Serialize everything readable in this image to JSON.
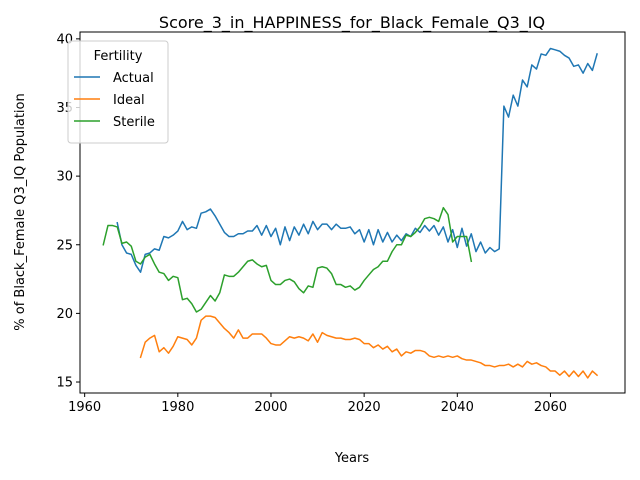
{
  "chart_data": {
    "type": "line",
    "title": "Score_3_in_HAPPINESS_for_Black_Female_Q3_IQ",
    "xlabel": "Years",
    "ylabel": "% of Black_Female Q3_IQ Population",
    "xlim": [
      1959,
      2076
    ],
    "ylim": [
      14.2,
      40.5
    ],
    "xticks": [
      1960,
      1980,
      2000,
      2020,
      2040,
      2060
    ],
    "yticks": [
      15,
      20,
      25,
      30,
      35,
      40
    ],
    "grid": false,
    "legend": {
      "title": "Fertility",
      "placement": "top-left"
    },
    "series": [
      {
        "name": "Actual",
        "color": "#1f77b4",
        "points": [
          [
            1967,
            26.6
          ],
          [
            1968,
            25.0
          ],
          [
            1969,
            24.4
          ],
          [
            1970,
            24.3
          ],
          [
            1971,
            23.5
          ],
          [
            1972,
            23.0
          ],
          [
            1973,
            24.3
          ],
          [
            1974,
            24.4
          ],
          [
            1975,
            24.7
          ],
          [
            1976,
            24.6
          ],
          [
            1977,
            25.6
          ],
          [
            1978,
            25.5
          ],
          [
            1979,
            25.7
          ],
          [
            1980,
            26.0
          ],
          [
            1981,
            26.7
          ],
          [
            1982,
            26.1
          ],
          [
            1983,
            26.3
          ],
          [
            1984,
            26.2
          ],
          [
            1985,
            27.3
          ],
          [
            1986,
            27.4
          ],
          [
            1987,
            27.6
          ],
          [
            1988,
            27.1
          ],
          [
            1989,
            26.5
          ],
          [
            1990,
            25.9
          ],
          [
            1991,
            25.6
          ],
          [
            1992,
            25.6
          ],
          [
            1993,
            25.8
          ],
          [
            1994,
            25.8
          ],
          [
            1995,
            26.0
          ],
          [
            1996,
            26.0
          ],
          [
            1997,
            26.4
          ],
          [
            1998,
            25.7
          ],
          [
            1999,
            26.4
          ],
          [
            2000,
            25.6
          ],
          [
            2001,
            26.2
          ],
          [
            2002,
            25.0
          ],
          [
            2003,
            26.3
          ],
          [
            2004,
            25.3
          ],
          [
            2005,
            26.3
          ],
          [
            2006,
            25.7
          ],
          [
            2007,
            26.5
          ],
          [
            2008,
            25.8
          ],
          [
            2009,
            26.7
          ],
          [
            2010,
            26.1
          ],
          [
            2011,
            26.5
          ],
          [
            2012,
            26.5
          ],
          [
            2013,
            26.1
          ],
          [
            2014,
            26.5
          ],
          [
            2015,
            26.2
          ],
          [
            2016,
            26.2
          ],
          [
            2017,
            26.3
          ],
          [
            2018,
            25.8
          ],
          [
            2019,
            26.1
          ],
          [
            2020,
            25.2
          ],
          [
            2021,
            26.1
          ],
          [
            2022,
            25.0
          ],
          [
            2023,
            26.1
          ],
          [
            2024,
            25.2
          ],
          [
            2025,
            25.9
          ],
          [
            2026,
            25.2
          ],
          [
            2027,
            25.7
          ],
          [
            2028,
            25.3
          ],
          [
            2029,
            25.8
          ],
          [
            2030,
            25.6
          ],
          [
            2031,
            26.2
          ],
          [
            2032,
            25.9
          ],
          [
            2033,
            26.4
          ],
          [
            2034,
            26.0
          ],
          [
            2035,
            26.4
          ],
          [
            2036,
            25.7
          ],
          [
            2037,
            26.3
          ],
          [
            2038,
            25.2
          ],
          [
            2039,
            26.1
          ],
          [
            2040,
            24.8
          ],
          [
            2041,
            26.2
          ],
          [
            2042,
            24.9
          ],
          [
            2043,
            25.8
          ],
          [
            2044,
            24.5
          ],
          [
            2045,
            25.2
          ],
          [
            2046,
            24.4
          ],
          [
            2047,
            24.8
          ],
          [
            2048,
            24.5
          ],
          [
            2049,
            24.7
          ],
          [
            2050,
            35.1
          ],
          [
            2051,
            34.3
          ],
          [
            2052,
            35.9
          ],
          [
            2053,
            35.1
          ],
          [
            2054,
            37.0
          ],
          [
            2055,
            36.5
          ],
          [
            2056,
            38.1
          ],
          [
            2057,
            37.8
          ],
          [
            2058,
            38.9
          ],
          [
            2059,
            38.8
          ],
          [
            2060,
            39.3
          ],
          [
            2061,
            39.2
          ],
          [
            2062,
            39.1
          ],
          [
            2063,
            38.8
          ],
          [
            2064,
            38.6
          ],
          [
            2065,
            38.0
          ],
          [
            2066,
            38.1
          ],
          [
            2067,
            37.5
          ],
          [
            2068,
            38.2
          ],
          [
            2069,
            37.7
          ],
          [
            2070,
            38.9
          ]
        ]
      },
      {
        "name": "Ideal",
        "color": "#ff7f0e",
        "points": [
          [
            1972,
            16.8
          ],
          [
            1973,
            17.9
          ],
          [
            1974,
            18.2
          ],
          [
            1975,
            18.4
          ],
          [
            1976,
            17.2
          ],
          [
            1977,
            17.5
          ],
          [
            1978,
            17.1
          ],
          [
            1979,
            17.6
          ],
          [
            1980,
            18.3
          ],
          [
            1981,
            18.2
          ],
          [
            1982,
            18.1
          ],
          [
            1983,
            17.7
          ],
          [
            1984,
            18.2
          ],
          [
            1985,
            19.5
          ],
          [
            1986,
            19.8
          ],
          [
            1987,
            19.8
          ],
          [
            1988,
            19.7
          ],
          [
            1989,
            19.3
          ],
          [
            1990,
            18.9
          ],
          [
            1991,
            18.6
          ],
          [
            1992,
            18.2
          ],
          [
            1993,
            18.8
          ],
          [
            1994,
            18.2
          ],
          [
            1995,
            18.2
          ],
          [
            1996,
            18.5
          ],
          [
            1997,
            18.5
          ],
          [
            1998,
            18.5
          ],
          [
            1999,
            18.2
          ],
          [
            2000,
            17.8
          ],
          [
            2001,
            17.7
          ],
          [
            2002,
            17.7
          ],
          [
            2003,
            18.0
          ],
          [
            2004,
            18.3
          ],
          [
            2005,
            18.2
          ],
          [
            2006,
            18.3
          ],
          [
            2007,
            18.2
          ],
          [
            2008,
            18.0
          ],
          [
            2009,
            18.5
          ],
          [
            2010,
            17.9
          ],
          [
            2011,
            18.6
          ],
          [
            2012,
            18.4
          ],
          [
            2013,
            18.3
          ],
          [
            2014,
            18.2
          ],
          [
            2015,
            18.2
          ],
          [
            2016,
            18.1
          ],
          [
            2017,
            18.1
          ],
          [
            2018,
            18.2
          ],
          [
            2019,
            18.1
          ],
          [
            2020,
            17.8
          ],
          [
            2021,
            17.8
          ],
          [
            2022,
            17.5
          ],
          [
            2023,
            17.7
          ],
          [
            2024,
            17.4
          ],
          [
            2025,
            17.6
          ],
          [
            2026,
            17.2
          ],
          [
            2027,
            17.4
          ],
          [
            2028,
            16.9
          ],
          [
            2029,
            17.2
          ],
          [
            2030,
            17.1
          ],
          [
            2031,
            17.3
          ],
          [
            2032,
            17.3
          ],
          [
            2033,
            17.2
          ],
          [
            2034,
            16.9
          ],
          [
            2035,
            16.8
          ],
          [
            2036,
            16.9
          ],
          [
            2037,
            16.8
          ],
          [
            2038,
            16.9
          ],
          [
            2039,
            16.8
          ],
          [
            2040,
            16.9
          ],
          [
            2041,
            16.7
          ],
          [
            2042,
            16.6
          ],
          [
            2043,
            16.6
          ],
          [
            2044,
            16.5
          ],
          [
            2045,
            16.4
          ],
          [
            2046,
            16.2
          ],
          [
            2047,
            16.2
          ],
          [
            2048,
            16.1
          ],
          [
            2049,
            16.2
          ],
          [
            2050,
            16.2
          ],
          [
            2051,
            16.3
          ],
          [
            2052,
            16.1
          ],
          [
            2053,
            16.3
          ],
          [
            2054,
            16.1
          ],
          [
            2055,
            16.5
          ],
          [
            2056,
            16.3
          ],
          [
            2057,
            16.4
          ],
          [
            2058,
            16.2
          ],
          [
            2059,
            16.1
          ],
          [
            2060,
            15.8
          ],
          [
            2061,
            15.8
          ],
          [
            2062,
            15.5
          ],
          [
            2063,
            15.8
          ],
          [
            2064,
            15.4
          ],
          [
            2065,
            15.8
          ],
          [
            2066,
            15.4
          ],
          [
            2067,
            15.8
          ],
          [
            2068,
            15.3
          ],
          [
            2069,
            15.8
          ],
          [
            2070,
            15.5
          ]
        ]
      },
      {
        "name": "Sterile",
        "color": "#2ca02c",
        "points": [
          [
            1964,
            25.0
          ],
          [
            1965,
            26.4
          ],
          [
            1966,
            26.4
          ],
          [
            1967,
            26.3
          ],
          [
            1968,
            25.1
          ],
          [
            1969,
            25.2
          ],
          [
            1970,
            24.9
          ],
          [
            1971,
            23.8
          ],
          [
            1972,
            23.6
          ],
          [
            1973,
            24.1
          ],
          [
            1974,
            24.3
          ],
          [
            1975,
            23.6
          ],
          [
            1976,
            23.0
          ],
          [
            1977,
            22.9
          ],
          [
            1978,
            22.4
          ],
          [
            1979,
            22.7
          ],
          [
            1980,
            22.6
          ],
          [
            1981,
            21.0
          ],
          [
            1982,
            21.1
          ],
          [
            1983,
            20.7
          ],
          [
            1984,
            20.1
          ],
          [
            1985,
            20.3
          ],
          [
            1986,
            20.8
          ],
          [
            1987,
            21.3
          ],
          [
            1988,
            20.9
          ],
          [
            1989,
            21.5
          ],
          [
            1990,
            22.8
          ],
          [
            1991,
            22.7
          ],
          [
            1992,
            22.7
          ],
          [
            1993,
            23.0
          ],
          [
            1994,
            23.4
          ],
          [
            1995,
            23.8
          ],
          [
            1996,
            23.9
          ],
          [
            1997,
            23.6
          ],
          [
            1998,
            23.4
          ],
          [
            1999,
            23.5
          ],
          [
            2000,
            22.4
          ],
          [
            2001,
            22.1
          ],
          [
            2002,
            22.1
          ],
          [
            2003,
            22.4
          ],
          [
            2004,
            22.5
          ],
          [
            2005,
            22.3
          ],
          [
            2006,
            21.8
          ],
          [
            2007,
            21.5
          ],
          [
            2008,
            22.0
          ],
          [
            2009,
            21.9
          ],
          [
            2010,
            23.3
          ],
          [
            2011,
            23.4
          ],
          [
            2012,
            23.3
          ],
          [
            2013,
            22.9
          ],
          [
            2014,
            22.1
          ],
          [
            2015,
            22.1
          ],
          [
            2016,
            21.9
          ],
          [
            2017,
            22.0
          ],
          [
            2018,
            21.7
          ],
          [
            2019,
            21.9
          ],
          [
            2020,
            22.4
          ],
          [
            2021,
            22.8
          ],
          [
            2022,
            23.2
          ],
          [
            2023,
            23.4
          ],
          [
            2024,
            23.8
          ],
          [
            2025,
            23.8
          ],
          [
            2026,
            24.5
          ],
          [
            2027,
            25.0
          ],
          [
            2028,
            25.0
          ],
          [
            2029,
            25.7
          ],
          [
            2030,
            25.6
          ],
          [
            2031,
            25.9
          ],
          [
            2032,
            26.3
          ],
          [
            2033,
            26.9
          ],
          [
            2034,
            27.0
          ],
          [
            2035,
            26.9
          ],
          [
            2036,
            26.7
          ],
          [
            2037,
            27.7
          ],
          [
            2038,
            27.2
          ],
          [
            2039,
            25.2
          ],
          [
            2040,
            25.6
          ],
          [
            2041,
            25.6
          ],
          [
            2042,
            25.6
          ],
          [
            2043,
            23.8
          ]
        ]
      }
    ]
  }
}
